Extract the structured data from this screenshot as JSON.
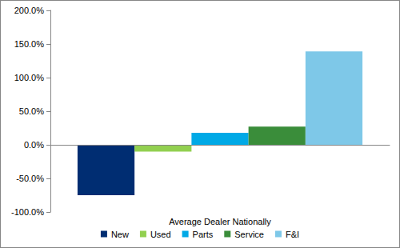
{
  "chart_data": {
    "type": "bar",
    "categories": [
      "Average Dealer Nationally"
    ],
    "series": [
      {
        "name": "New",
        "color": "#002d72",
        "values": [
          -75
        ]
      },
      {
        "name": "Used",
        "color": "#92d050",
        "values": [
          -10
        ]
      },
      {
        "name": "Parts",
        "color": "#00a9e6",
        "values": [
          18
        ]
      },
      {
        "name": "Service",
        "color": "#3a8d3a",
        "values": [
          27
        ]
      },
      {
        "name": "F&I",
        "color": "#7ec8e8",
        "values": [
          139
        ]
      }
    ],
    "ylim": [
      -100,
      200
    ],
    "yticks": [
      {
        "value": -100,
        "label": "-100.0%"
      },
      {
        "value": -50,
        "label": "-50.0%"
      },
      {
        "value": 0,
        "label": "0.0%"
      },
      {
        "value": 50,
        "label": "50.0%"
      },
      {
        "value": 100,
        "label": "100.0%"
      },
      {
        "value": 150,
        "label": "150.0%"
      },
      {
        "value": 200,
        "label": "200.0%"
      }
    ],
    "grid": false,
    "legend": "bottom"
  }
}
